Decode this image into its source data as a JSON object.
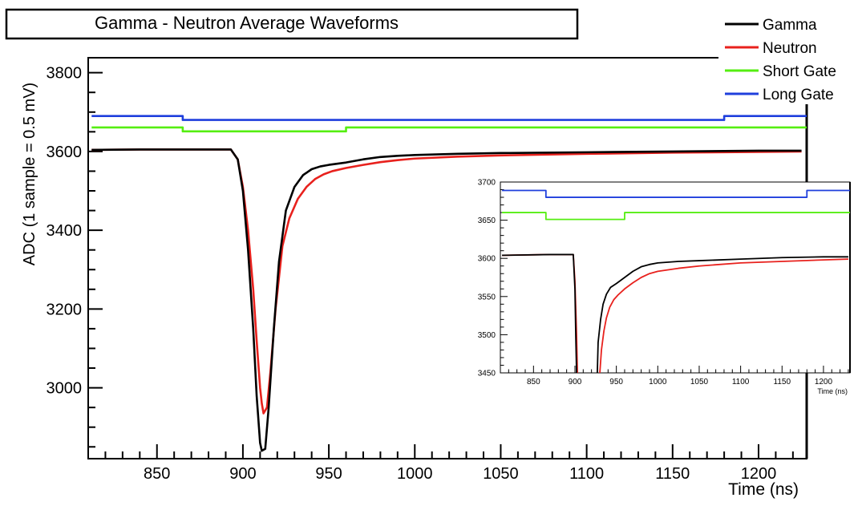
{
  "chart_data": [
    {
      "type": "line",
      "title": "Gamma - Neutron Average Waveforms",
      "xlabel": "Time (ns)",
      "ylabel": "ADC (1 sample = 0.5 mV)",
      "xlim": [
        810,
        1228
      ],
      "ylim": [
        2820,
        3838
      ],
      "xticks": [
        850,
        900,
        950,
        1000,
        1050,
        1100,
        1150,
        1200
      ],
      "yticks": [
        3000,
        3200,
        3400,
        3600,
        3800
      ],
      "legend_position": "top-right",
      "grid": false,
      "series": [
        {
          "name": "Gamma",
          "color": "#000000",
          "points": [
            [
              812,
              3604
            ],
            [
              840,
              3605
            ],
            [
              870,
              3605
            ],
            [
              893,
              3605
            ],
            [
              897,
              3580
            ],
            [
              900,
              3500
            ],
            [
              903,
              3350
            ],
            [
              906,
              3150
            ],
            [
              908,
              2980
            ],
            [
              910,
              2860
            ],
            [
              911,
              2840
            ],
            [
              913,
              2845
            ],
            [
              915,
              2950
            ],
            [
              918,
              3150
            ],
            [
              921,
              3320
            ],
            [
              925,
              3450
            ],
            [
              930,
              3510
            ],
            [
              935,
              3540
            ],
            [
              940,
              3555
            ],
            [
              945,
              3562
            ],
            [
              950,
              3566
            ],
            [
              960,
              3572
            ],
            [
              970,
              3580
            ],
            [
              980,
              3586
            ],
            [
              990,
              3589
            ],
            [
              1000,
              3591
            ],
            [
              1025,
              3594
            ],
            [
              1050,
              3596
            ],
            [
              1100,
              3598
            ],
            [
              1150,
              3600
            ],
            [
              1200,
              3602
            ],
            [
              1225,
              3602
            ]
          ]
        },
        {
          "name": "Neutron",
          "color": "#e8211d",
          "points": [
            [
              812,
              3604
            ],
            [
              840,
              3605
            ],
            [
              870,
              3605
            ],
            [
              893,
              3605
            ],
            [
              897,
              3580
            ],
            [
              900,
              3510
            ],
            [
              903,
              3400
            ],
            [
              906,
              3250
            ],
            [
              908,
              3120
            ],
            [
              910,
              3000
            ],
            [
              911,
              2960
            ],
            [
              912,
              2935
            ],
            [
              914,
              2950
            ],
            [
              916,
              3040
            ],
            [
              919,
              3200
            ],
            [
              923,
              3360
            ],
            [
              927,
              3430
            ],
            [
              932,
              3480
            ],
            [
              937,
              3510
            ],
            [
              942,
              3530
            ],
            [
              947,
              3542
            ],
            [
              952,
              3550
            ],
            [
              960,
              3558
            ],
            [
              970,
              3566
            ],
            [
              980,
              3573
            ],
            [
              990,
              3578
            ],
            [
              1000,
              3582
            ],
            [
              1025,
              3587
            ],
            [
              1050,
              3590
            ],
            [
              1100,
              3594
            ],
            [
              1150,
              3597
            ],
            [
              1200,
              3599
            ],
            [
              1225,
              3600
            ]
          ]
        },
        {
          "name": "Short Gate",
          "color": "#55ee11",
          "points": [
            [
              812,
              3661
            ],
            [
              865,
              3661
            ],
            [
              865,
              3651
            ],
            [
              960,
              3651
            ],
            [
              960,
              3661
            ],
            [
              1228,
              3661
            ]
          ]
        },
        {
          "name": "Long Gate",
          "color": "#1f3fdd",
          "points": [
            [
              812,
              3690
            ],
            [
              865,
              3690
            ],
            [
              865,
              3680
            ],
            [
              1180,
              3680
            ],
            [
              1180,
              3690
            ],
            [
              1228,
              3690
            ]
          ]
        }
      ]
    },
    {
      "type": "line",
      "title": "",
      "xlabel": "Time (ns)",
      "ylabel": "",
      "xlim": [
        810,
        1232
      ],
      "ylim": [
        3450,
        3700
      ],
      "xticks": [
        850,
        900,
        950,
        1000,
        1050,
        1100,
        1150,
        1200
      ],
      "yticks": [
        3450,
        3500,
        3550,
        3600,
        3650,
        3700
      ],
      "legend_position": "none",
      "grid": false,
      "series": [
        {
          "color": "#000000",
          "points": [
            [
              812,
              3604
            ],
            [
              870,
              3605
            ],
            [
              898,
              3605
            ],
            [
              900,
              3560
            ],
            [
              901,
              3500
            ],
            [
              902,
              3449
            ],
            [
              927,
              3449
            ],
            [
              928,
              3490
            ],
            [
              931,
              3520
            ],
            [
              934,
              3540
            ],
            [
              938,
              3553
            ],
            [
              943,
              3562
            ],
            [
              950,
              3567
            ],
            [
              960,
              3575
            ],
            [
              970,
              3583
            ],
            [
              980,
              3589
            ],
            [
              990,
              3592
            ],
            [
              1000,
              3594
            ],
            [
              1025,
              3596
            ],
            [
              1050,
              3597
            ],
            [
              1100,
              3599
            ],
            [
              1150,
              3601
            ],
            [
              1200,
              3602
            ],
            [
              1230,
              3602
            ]
          ]
        },
        {
          "color": "#e8211d",
          "points": [
            [
              812,
              3604
            ],
            [
              870,
              3605
            ],
            [
              898,
              3605
            ],
            [
              900,
              3570
            ],
            [
              902,
              3500
            ],
            [
              903,
              3449
            ],
            [
              930,
              3449
            ],
            [
              932,
              3480
            ],
            [
              935,
              3505
            ],
            [
              938,
              3522
            ],
            [
              942,
              3536
            ],
            [
              947,
              3546
            ],
            [
              952,
              3552
            ],
            [
              960,
              3560
            ],
            [
              970,
              3568
            ],
            [
              980,
              3575
            ],
            [
              990,
              3580
            ],
            [
              1000,
              3583
            ],
            [
              1025,
              3587
            ],
            [
              1050,
              3590
            ],
            [
              1100,
              3594
            ],
            [
              1150,
              3596
            ],
            [
              1200,
              3598
            ],
            [
              1230,
              3599
            ]
          ]
        },
        {
          "color": "#55ee11",
          "points": [
            [
              812,
              3660
            ],
            [
              865,
              3660
            ],
            [
              865,
              3651
            ],
            [
              960,
              3651
            ],
            [
              960,
              3660
            ],
            [
              1232,
              3660
            ]
          ]
        },
        {
          "color": "#1f3fdd",
          "points": [
            [
              812,
              3689
            ],
            [
              865,
              3689
            ],
            [
              865,
              3680
            ],
            [
              1180,
              3680
            ],
            [
              1180,
              3689
            ],
            [
              1232,
              3689
            ]
          ]
        }
      ]
    }
  ]
}
